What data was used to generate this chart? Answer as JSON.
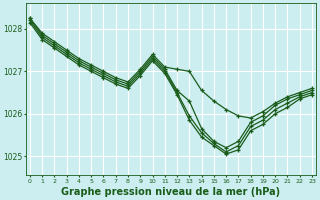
{
  "bg_color": "#cceef0",
  "grid_color": "#ffffff",
  "line_color": "#1a5c1a",
  "marker_color": "#1a5c1a",
  "xlabel": "Graphe pression niveau de la mer (hPa)",
  "xlabel_fontsize": 7.0,
  "xlabel_color": "#1a5c1a",
  "ylabel_ticks": [
    1025,
    1026,
    1027,
    1028
  ],
  "xtick_labels": [
    "0",
    "1",
    "2",
    "3",
    "4",
    "5",
    "6",
    "7",
    "8",
    "9",
    "10",
    "11",
    "12",
    "13",
    "14",
    "15",
    "16",
    "17",
    "18",
    "19",
    "20",
    "21",
    "22",
    "23"
  ],
  "xlim": [
    -0.3,
    23.3
  ],
  "ylim": [
    1024.55,
    1028.6
  ],
  "series": [
    [
      1028.25,
      1027.9,
      1027.7,
      1027.5,
      1027.3,
      1027.15,
      1027.0,
      1026.85,
      1026.75,
      1027.05,
      1027.4,
      1027.1,
      1027.05,
      1027.0,
      1026.55,
      1026.3,
      1026.1,
      1025.95,
      1025.9,
      1026.05,
      1026.25,
      1026.4,
      1026.5,
      1026.6
    ],
    [
      1028.25,
      1027.85,
      1027.65,
      1027.45,
      1027.25,
      1027.1,
      1026.95,
      1026.8,
      1026.7,
      1027.0,
      1027.35,
      1027.05,
      1026.55,
      1026.3,
      1025.65,
      1025.35,
      1025.2,
      1025.35,
      1025.8,
      1025.95,
      1026.2,
      1026.35,
      1026.45,
      1026.55
    ],
    [
      1028.2,
      1027.8,
      1027.6,
      1027.4,
      1027.2,
      1027.05,
      1026.9,
      1026.75,
      1026.65,
      1026.95,
      1027.3,
      1027.0,
      1026.5,
      1025.95,
      1025.55,
      1025.3,
      1025.1,
      1025.25,
      1025.7,
      1025.85,
      1026.1,
      1026.25,
      1026.4,
      1026.5
    ],
    [
      1028.15,
      1027.75,
      1027.55,
      1027.35,
      1027.15,
      1027.0,
      1026.85,
      1026.7,
      1026.6,
      1026.9,
      1027.25,
      1026.95,
      1026.45,
      1025.85,
      1025.45,
      1025.25,
      1025.05,
      1025.15,
      1025.6,
      1025.75,
      1026.0,
      1026.15,
      1026.35,
      1026.45
    ]
  ],
  "marker_size": 3.0,
  "linewidth": 0.9
}
